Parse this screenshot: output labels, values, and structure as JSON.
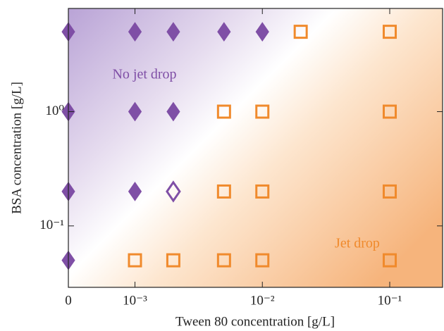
{
  "chart_data": {
    "type": "scatter",
    "x_label": "Tween 80 concentration [g/L]",
    "y_label": "BSA concentration [g/L]",
    "xscale": "log",
    "yscale": "log",
    "xlim": [
      0.0003,
      0.26
    ],
    "ylim": [
      0.029,
      8
    ],
    "xticks": [
      0,
      {
        "value": 0.001,
        "label": "10⁻³"
      },
      {
        "value": 0.01,
        "label": "10⁻²"
      },
      {
        "value": 0.1,
        "label": "10⁻¹"
      }
    ],
    "yticks": [
      {
        "value": 0.1,
        "label": "10⁻¹"
      },
      {
        "value": 1,
        "label": "10⁰"
      }
    ],
    "series": [
      {
        "name": "No jet drop",
        "color": "#7f4fa6",
        "marker": "diamond",
        "filled": true,
        "x": [
          0,
          0.001,
          0.002,
          0.005,
          0.01,
          0,
          0.001,
          0.002,
          0,
          0.001,
          0
        ],
        "y": [
          5,
          5,
          5,
          5,
          5,
          1,
          1,
          1,
          0.2,
          0.2,
          0.05
        ]
      },
      {
        "color": "#7f4fa6",
        "marker": "diamond",
        "filled": false,
        "x": [
          0.002
        ],
        "y": [
          0.2
        ]
      },
      {
        "name": "Jet drop",
        "color": "#f08a2c",
        "marker": "square",
        "filled": false,
        "x": [
          0.02,
          0.1,
          0.005,
          0.01,
          0.1,
          0.005,
          0.01,
          0.1,
          0.001,
          0.002,
          0.005,
          0.01,
          0.1
        ],
        "y": [
          5,
          5,
          1,
          1,
          1,
          0.2,
          0.2,
          0.2,
          0.05,
          0.05,
          0.05,
          0.05,
          0.05
        ]
      }
    ]
  }
}
